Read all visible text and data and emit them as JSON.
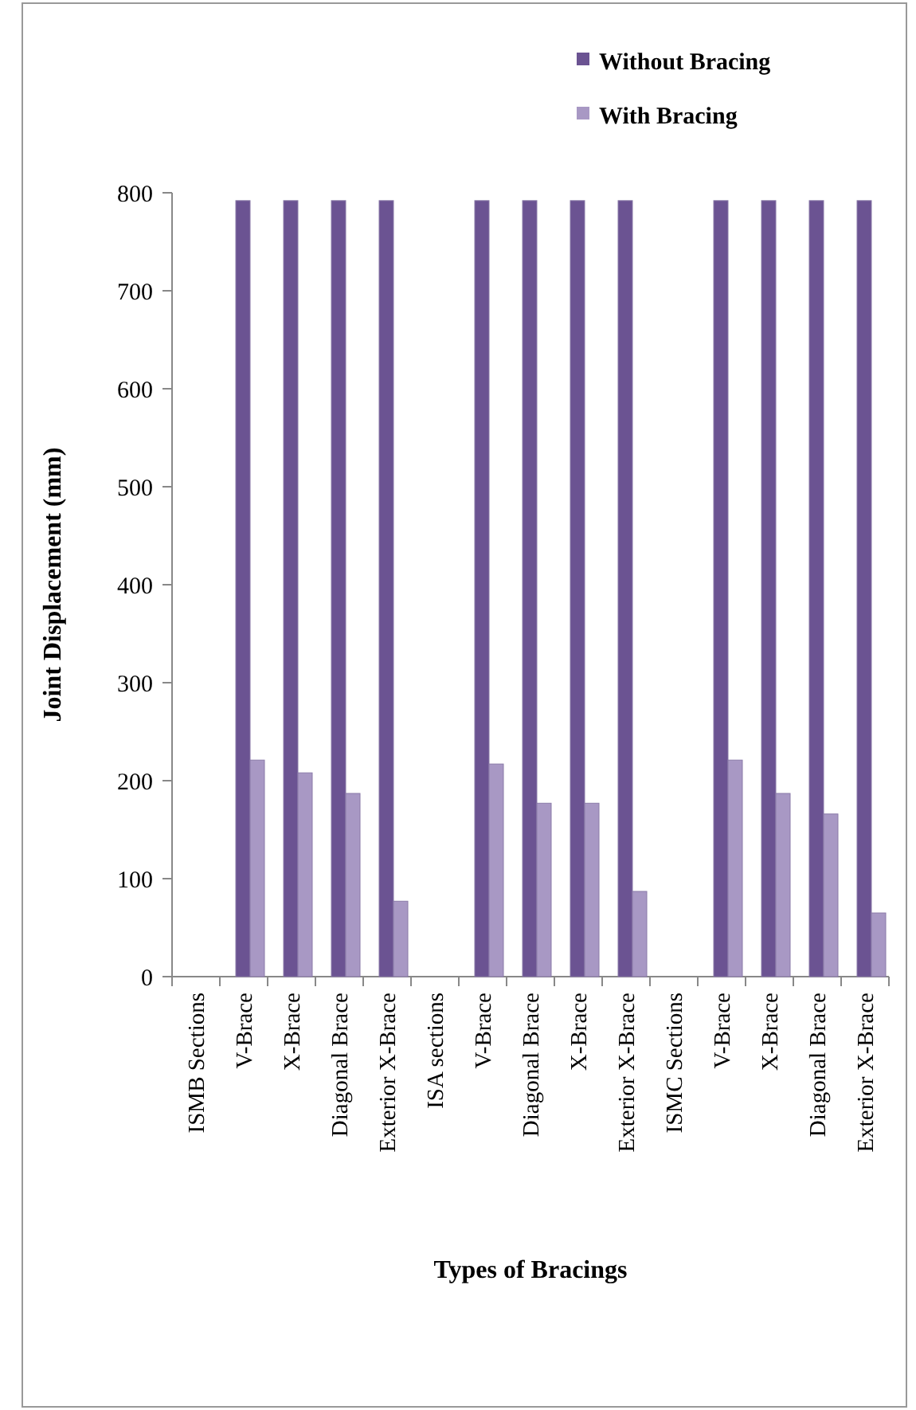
{
  "chart_data": {
    "type": "bar",
    "xlabel": "Types of Bracings",
    "ylabel": "Joint Displacement  (mm)",
    "categories": [
      "ISMB Sections",
      "V-Brace",
      "X-Brace",
      "Diagonal Brace",
      "Exterior X-Brace",
      "ISA sections",
      "V-Brace",
      "Diagonal Brace",
      "X-Brace",
      "Exterior X-Brace",
      "ISMC Sections",
      "V-Brace",
      "X-Brace",
      "Diagonal Brace",
      "Exterior X-Brace"
    ],
    "series": [
      {
        "name": "Without Bracing",
        "color": "#6b5392",
        "values": [
          null,
          792,
          792,
          792,
          792,
          null,
          792,
          792,
          792,
          792,
          null,
          792,
          792,
          792,
          792
        ]
      },
      {
        "name": "With Bracing",
        "color": "#a898c4",
        "values": [
          null,
          221,
          208,
          187,
          77,
          null,
          217,
          177,
          177,
          87,
          null,
          221,
          187,
          166,
          65
        ]
      }
    ],
    "ylim": [
      0,
      800
    ],
    "yticks": [
      0,
      100,
      200,
      300,
      400,
      500,
      600,
      700,
      800
    ],
    "grid": false,
    "legend": "top right"
  }
}
